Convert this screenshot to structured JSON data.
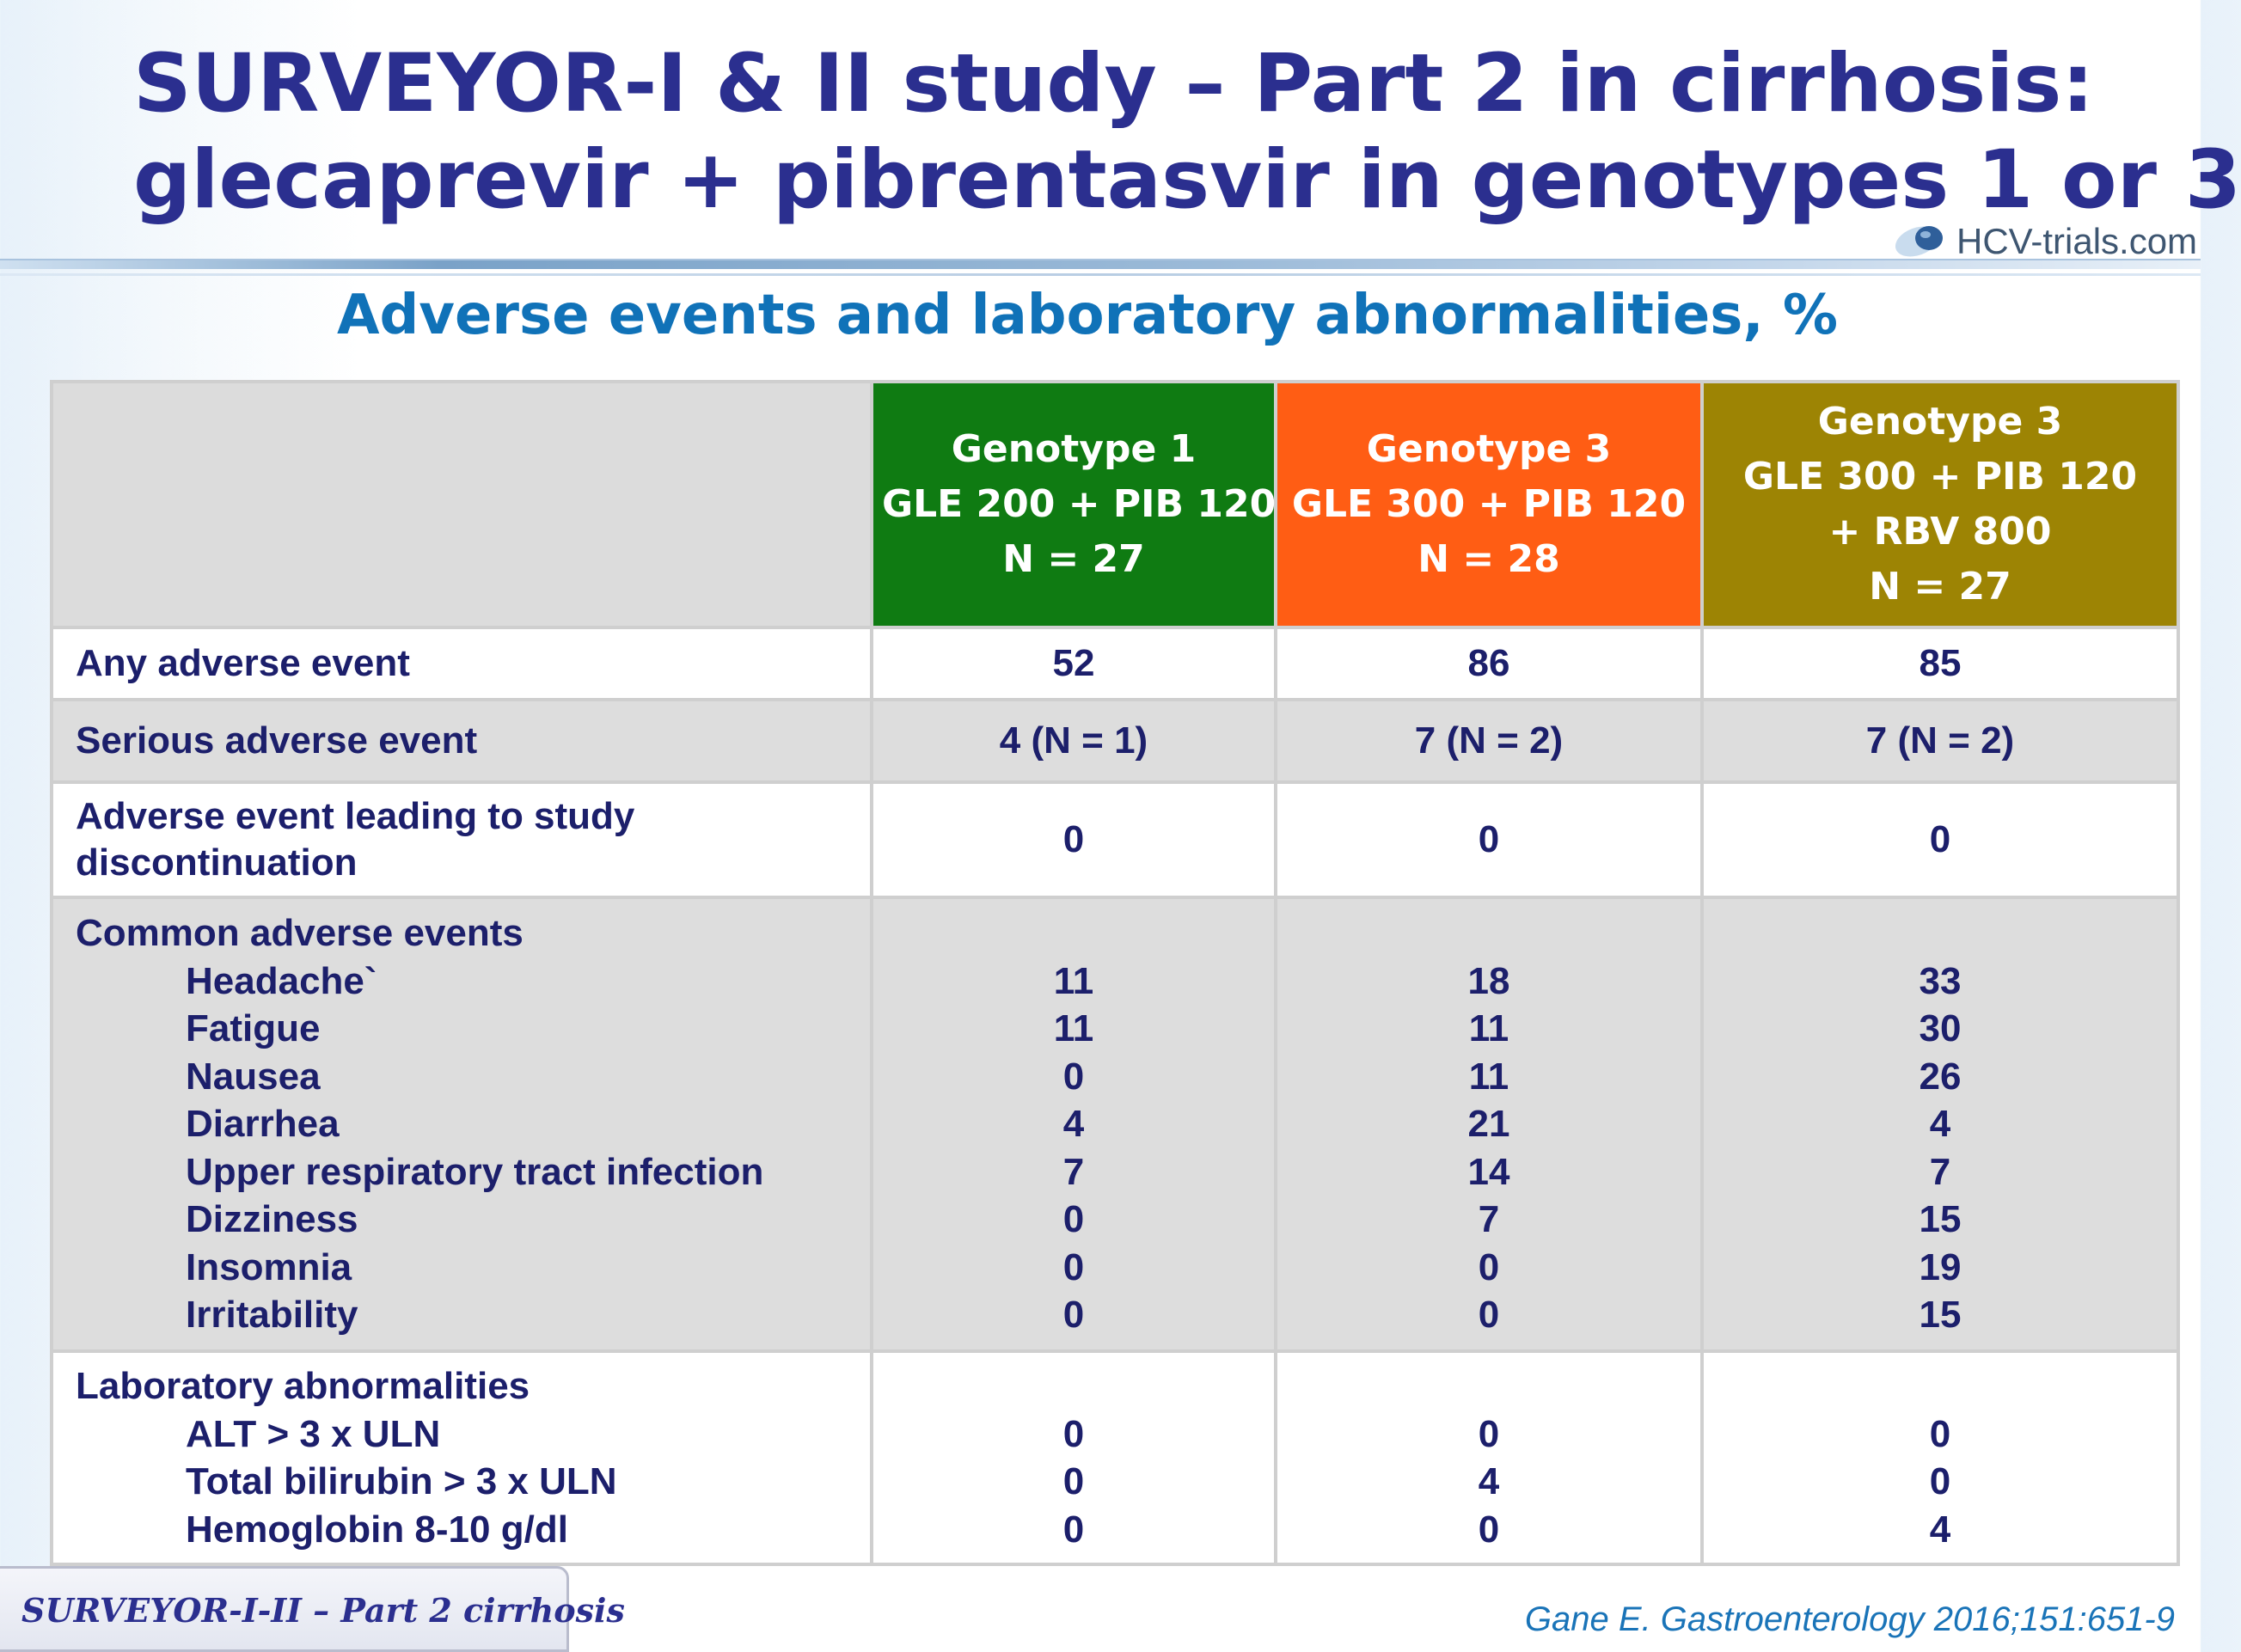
{
  "title": {
    "line1": "SURVEYOR-I & II study – Part 2 in cirrhosis:",
    "line2": "glecaprevir + pibrentasvir in genotypes 1 or 3"
  },
  "logo": {
    "text": "HCV-trials.com"
  },
  "subtitle": "Adverse events and laboratory abnormalities, %",
  "table": {
    "columns": [
      {
        "lines": [
          "Genotype 1",
          "GLE 200 + PIB 120",
          "N = 27"
        ],
        "color": "#0f7b12"
      },
      {
        "lines": [
          "Genotype 3",
          "GLE 300 + PIB 120",
          "N = 28"
        ],
        "color": "#ff5d14"
      },
      {
        "lines": [
          "Genotype 3",
          "GLE 300 + PIB 120",
          "+ RBV 800",
          "N = 27"
        ],
        "color": "#9d8404"
      }
    ],
    "any_ae": {
      "label": "Any adverse event",
      "values": [
        "52",
        "86",
        "85"
      ]
    },
    "serious_ae": {
      "label": "Serious adverse event",
      "values": [
        "4 (N = 1)",
        "7 (N = 2)",
        "7 (N = 2)"
      ]
    },
    "discontinuation": {
      "label_lines": [
        "Adverse event leading to study",
        "discontinuation"
      ],
      "values": [
        "0",
        "0",
        "0"
      ]
    },
    "common": {
      "label": "Common adverse events",
      "items": [
        {
          "label": "Headache`",
          "values": [
            "11",
            "18",
            "33"
          ]
        },
        {
          "label": "Fatigue",
          "values": [
            "11",
            "11",
            "30"
          ]
        },
        {
          "label": "Nausea",
          "values": [
            "0",
            "11",
            "26"
          ]
        },
        {
          "label": "Diarrhea",
          "values": [
            "4",
            "21",
            "4"
          ]
        },
        {
          "label": "Upper respiratory tract infection",
          "values": [
            "7",
            "14",
            "7"
          ]
        },
        {
          "label": "Dizziness",
          "values": [
            "0",
            "7",
            "15"
          ]
        },
        {
          "label": "Insomnia",
          "values": [
            "0",
            "0",
            "19"
          ]
        },
        {
          "label": "Irritability",
          "values": [
            "0",
            "0",
            "15"
          ]
        }
      ]
    },
    "laboratory": {
      "label": "Laboratory abnormalities",
      "items": [
        {
          "label": "ALT > 3 x ULN",
          "values": [
            "0",
            "0",
            "0"
          ]
        },
        {
          "label": "Total bilirubin > 3 x ULN",
          "values": [
            "0",
            "4",
            "0"
          ]
        },
        {
          "label": "Hemoglobin 8-10 g/dl",
          "values": [
            "0",
            "0",
            "4"
          ]
        }
      ]
    }
  },
  "footer": {
    "tag": "SURVEYOR-I-II – Part 2 cirrhosis",
    "citation": "Gane E. Gastroenterology 2016;151:651-9"
  }
}
